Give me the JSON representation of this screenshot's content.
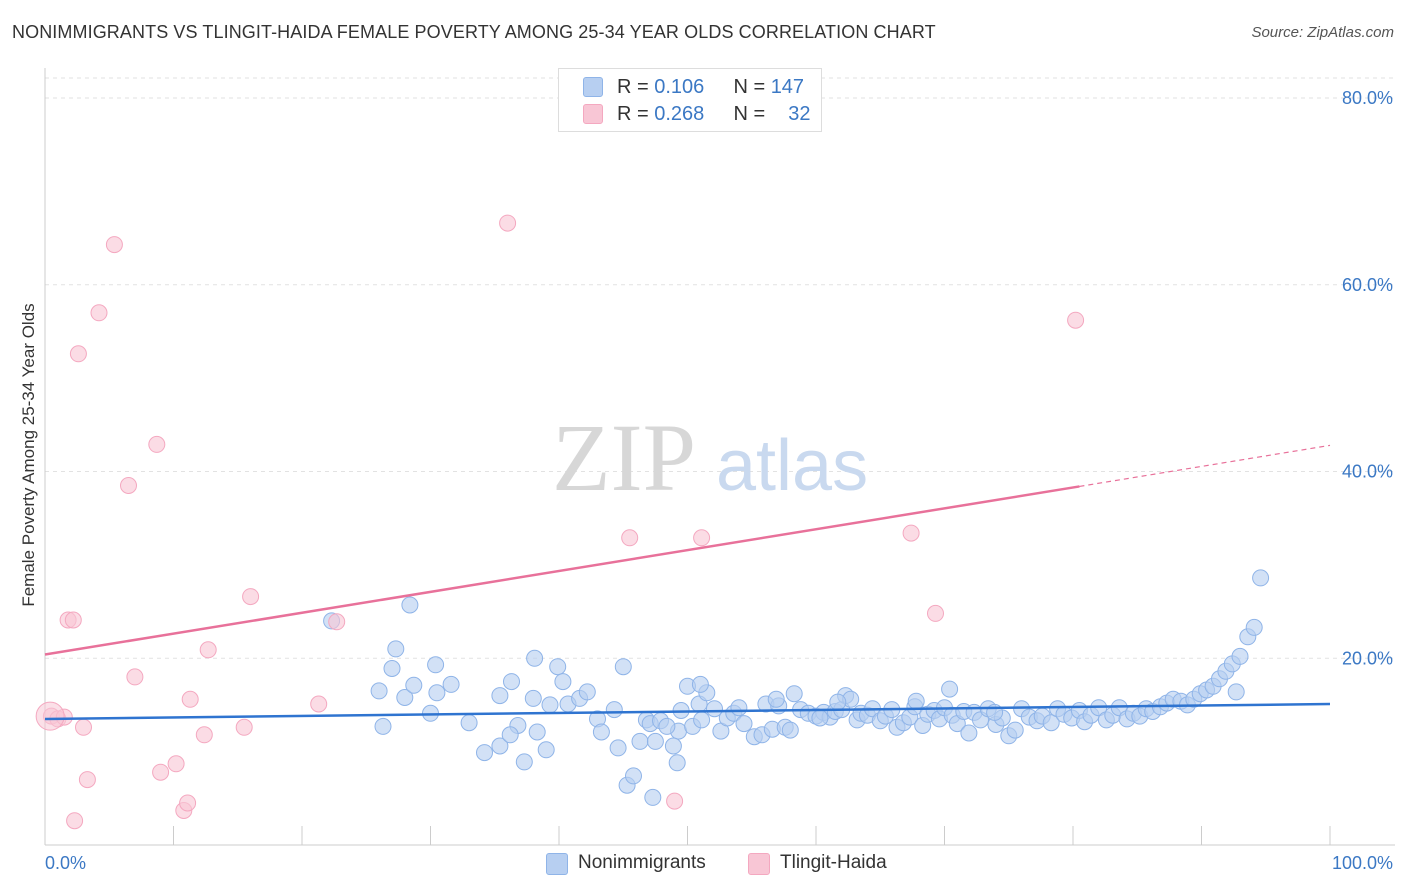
{
  "chart_data": {
    "type": "scatter",
    "title": "NONIMMIGRANTS VS TLINGIT-HAIDA FEMALE POVERTY AMONG 25-34 YEAR OLDS CORRELATION CHART",
    "source": "Source: ZipAtlas.com",
    "xlabel": "",
    "ylabel": "Female Poverty Among 25-34 Year Olds",
    "xlim": [
      0,
      100
    ],
    "ylim": [
      0,
      80
    ],
    "x_tick_labels": [
      "0.0%",
      "100.0%"
    ],
    "y_ticks": [
      20,
      40,
      60,
      80
    ],
    "y_tick_labels": [
      "20.0%",
      "40.0%",
      "60.0%",
      "80.0%"
    ],
    "grid": true,
    "watermark": {
      "zip": "ZIP",
      "atlas": "atlas"
    },
    "legend": {
      "rows": [
        {
          "r_label": "R =",
          "r_value": "0.106",
          "n_label": "N =",
          "n_value": "147"
        },
        {
          "r_label": "R =",
          "r_value": "0.268",
          "n_label": "N =",
          "n_value": "32"
        }
      ]
    },
    "series": [
      {
        "name": "Nonimmigrants",
        "color": "#8fb4e8",
        "fill": "#b7cff1",
        "line_color": "#2f74d0",
        "trend": {
          "x0": 0,
          "y0": 13.5,
          "x1": 100,
          "y1": 15.1
        },
        "points": [
          [
            22.3,
            24.0
          ],
          [
            28.4,
            25.7
          ],
          [
            36.8,
            12.8
          ],
          [
            35.4,
            16.0
          ],
          [
            38.0,
            15.7
          ],
          [
            47.3,
            5.1
          ],
          [
            49.3,
            12.2
          ],
          [
            39.3,
            15.0
          ],
          [
            44.6,
            10.4
          ],
          [
            46.8,
            13.4
          ],
          [
            26.0,
            16.5
          ],
          [
            26.3,
            12.7
          ],
          [
            27.0,
            18.9
          ],
          [
            27.3,
            21.0
          ],
          [
            28.0,
            15.8
          ],
          [
            28.7,
            17.1
          ],
          [
            30.0,
            14.1
          ],
          [
            30.5,
            16.3
          ],
          [
            30.4,
            19.3
          ],
          [
            31.6,
            17.2
          ],
          [
            33.0,
            13.1
          ],
          [
            34.2,
            9.9
          ],
          [
            35.4,
            10.6
          ],
          [
            36.2,
            11.8
          ],
          [
            37.3,
            8.9
          ],
          [
            36.3,
            17.5
          ],
          [
            38.1,
            20.0
          ],
          [
            38.3,
            12.1
          ],
          [
            39.0,
            10.2
          ],
          [
            39.9,
            19.1
          ],
          [
            40.3,
            17.5
          ],
          [
            40.7,
            15.1
          ],
          [
            41.6,
            15.7
          ],
          [
            42.2,
            16.4
          ],
          [
            43.0,
            13.5
          ],
          [
            43.3,
            12.1
          ],
          [
            44.3,
            14.5
          ],
          [
            45.0,
            19.1
          ],
          [
            45.3,
            6.4
          ],
          [
            45.8,
            7.4
          ],
          [
            46.3,
            11.1
          ],
          [
            47.1,
            13.0
          ],
          [
            47.5,
            11.1
          ],
          [
            47.9,
            13.3
          ],
          [
            48.4,
            12.7
          ],
          [
            48.9,
            10.6
          ],
          [
            49.2,
            8.8
          ],
          [
            49.5,
            14.4
          ],
          [
            50.0,
            17.0
          ],
          [
            50.4,
            12.7
          ],
          [
            50.9,
            15.1
          ],
          [
            51.1,
            13.4
          ],
          [
            51.5,
            16.3
          ],
          [
            52.1,
            14.6
          ],
          [
            52.6,
            12.2
          ],
          [
            53.1,
            13.6
          ],
          [
            53.6,
            14.1
          ],
          [
            54.0,
            14.7
          ],
          [
            54.4,
            13.0
          ],
          [
            55.2,
            11.6
          ],
          [
            55.8,
            11.8
          ],
          [
            56.1,
            15.1
          ],
          [
            56.6,
            12.4
          ],
          [
            57.1,
            14.9
          ],
          [
            57.6,
            12.6
          ],
          [
            58.0,
            12.3
          ],
          [
            58.3,
            16.2
          ],
          [
            58.8,
            14.5
          ],
          [
            59.4,
            14.1
          ],
          [
            60.0,
            13.8
          ],
          [
            60.6,
            14.2
          ],
          [
            61.1,
            13.7
          ],
          [
            61.5,
            14.3
          ],
          [
            62.0,
            14.5
          ],
          [
            62.3,
            16.0
          ],
          [
            62.7,
            15.6
          ],
          [
            63.2,
            13.4
          ],
          [
            63.5,
            14.1
          ],
          [
            64.0,
            13.9
          ],
          [
            64.4,
            14.6
          ],
          [
            65.0,
            13.3
          ],
          [
            65.4,
            13.8
          ],
          [
            65.9,
            14.5
          ],
          [
            66.3,
            12.6
          ],
          [
            66.8,
            13.1
          ],
          [
            67.3,
            13.7
          ],
          [
            67.7,
            14.8
          ],
          [
            68.3,
            12.8
          ],
          [
            68.7,
            14.0
          ],
          [
            69.2,
            14.4
          ],
          [
            69.6,
            13.5
          ],
          [
            70.0,
            14.7
          ],
          [
            70.6,
            13.9
          ],
          [
            71.0,
            13.0
          ],
          [
            71.5,
            14.3
          ],
          [
            71.9,
            12.0
          ],
          [
            72.3,
            14.2
          ],
          [
            72.8,
            13.4
          ],
          [
            73.4,
            14.6
          ],
          [
            74.0,
            12.9
          ],
          [
            74.5,
            13.6
          ],
          [
            75.0,
            11.7
          ],
          [
            75.5,
            12.3
          ],
          [
            76.0,
            14.6
          ],
          [
            76.6,
            13.7
          ],
          [
            77.2,
            13.3
          ],
          [
            77.6,
            13.8
          ],
          [
            78.3,
            13.1
          ],
          [
            78.8,
            14.6
          ],
          [
            79.3,
            14.0
          ],
          [
            79.9,
            13.6
          ],
          [
            80.5,
            14.4
          ],
          [
            80.9,
            13.2
          ],
          [
            81.4,
            13.9
          ],
          [
            82.0,
            14.7
          ],
          [
            82.6,
            13.4
          ],
          [
            83.1,
            13.9
          ],
          [
            83.6,
            14.7
          ],
          [
            84.2,
            13.5
          ],
          [
            84.7,
            14.1
          ],
          [
            85.2,
            13.8
          ],
          [
            85.7,
            14.6
          ],
          [
            86.2,
            14.3
          ],
          [
            86.8,
            14.8
          ],
          [
            87.3,
            15.2
          ],
          [
            87.8,
            15.6
          ],
          [
            88.4,
            15.4
          ],
          [
            88.9,
            15.0
          ],
          [
            89.4,
            15.6
          ],
          [
            89.9,
            16.2
          ],
          [
            90.4,
            16.6
          ],
          [
            90.9,
            17.0
          ],
          [
            91.4,
            17.8
          ],
          [
            91.9,
            18.6
          ],
          [
            92.4,
            19.4
          ],
          [
            93.0,
            20.2
          ],
          [
            93.6,
            22.3
          ],
          [
            94.1,
            23.3
          ],
          [
            94.6,
            28.6
          ],
          [
            92.7,
            16.4
          ],
          [
            51.0,
            17.2
          ],
          [
            56.9,
            15.6
          ],
          [
            61.7,
            15.3
          ],
          [
            67.8,
            15.4
          ],
          [
            70.4,
            16.7
          ],
          [
            73.9,
            14.2
          ],
          [
            60.3,
            13.6
          ]
        ]
      },
      {
        "name": "Tlingit-Haida",
        "color": "#f4a8c0",
        "fill": "#f8c6d5",
        "line_color": "#e8719a",
        "trend": {
          "x0": 0,
          "y0": 20.4,
          "x1": 80.5,
          "y1": 38.4,
          "x_dash_end": 100,
          "y_dash_end": 42.8
        },
        "points": [
          [
            0.5,
            13.8
          ],
          [
            1.0,
            13.5
          ],
          [
            1.5,
            13.7
          ],
          [
            1.8,
            24.1
          ],
          [
            2.3,
            2.6
          ],
          [
            2.6,
            52.6
          ],
          [
            3.0,
            12.6
          ],
          [
            3.3,
            7.0
          ],
          [
            4.2,
            57.0
          ],
          [
            5.4,
            64.3
          ],
          [
            6.5,
            38.5
          ],
          [
            7.0,
            18.0
          ],
          [
            8.7,
            42.9
          ],
          [
            9.0,
            7.8
          ],
          [
            10.2,
            8.7
          ],
          [
            10.8,
            3.7
          ],
          [
            11.1,
            4.5
          ],
          [
            11.3,
            15.6
          ],
          [
            12.4,
            11.8
          ],
          [
            12.7,
            20.9
          ],
          [
            15.5,
            12.6
          ],
          [
            16.0,
            26.6
          ],
          [
            21.3,
            15.1
          ],
          [
            22.7,
            23.9
          ],
          [
            36.0,
            66.6
          ],
          [
            45.5,
            32.9
          ],
          [
            49.0,
            4.7
          ],
          [
            51.1,
            32.9
          ],
          [
            67.4,
            33.4
          ],
          [
            69.3,
            24.8
          ],
          [
            80.2,
            56.2
          ],
          [
            2.2,
            24.1
          ]
        ]
      }
    ]
  }
}
